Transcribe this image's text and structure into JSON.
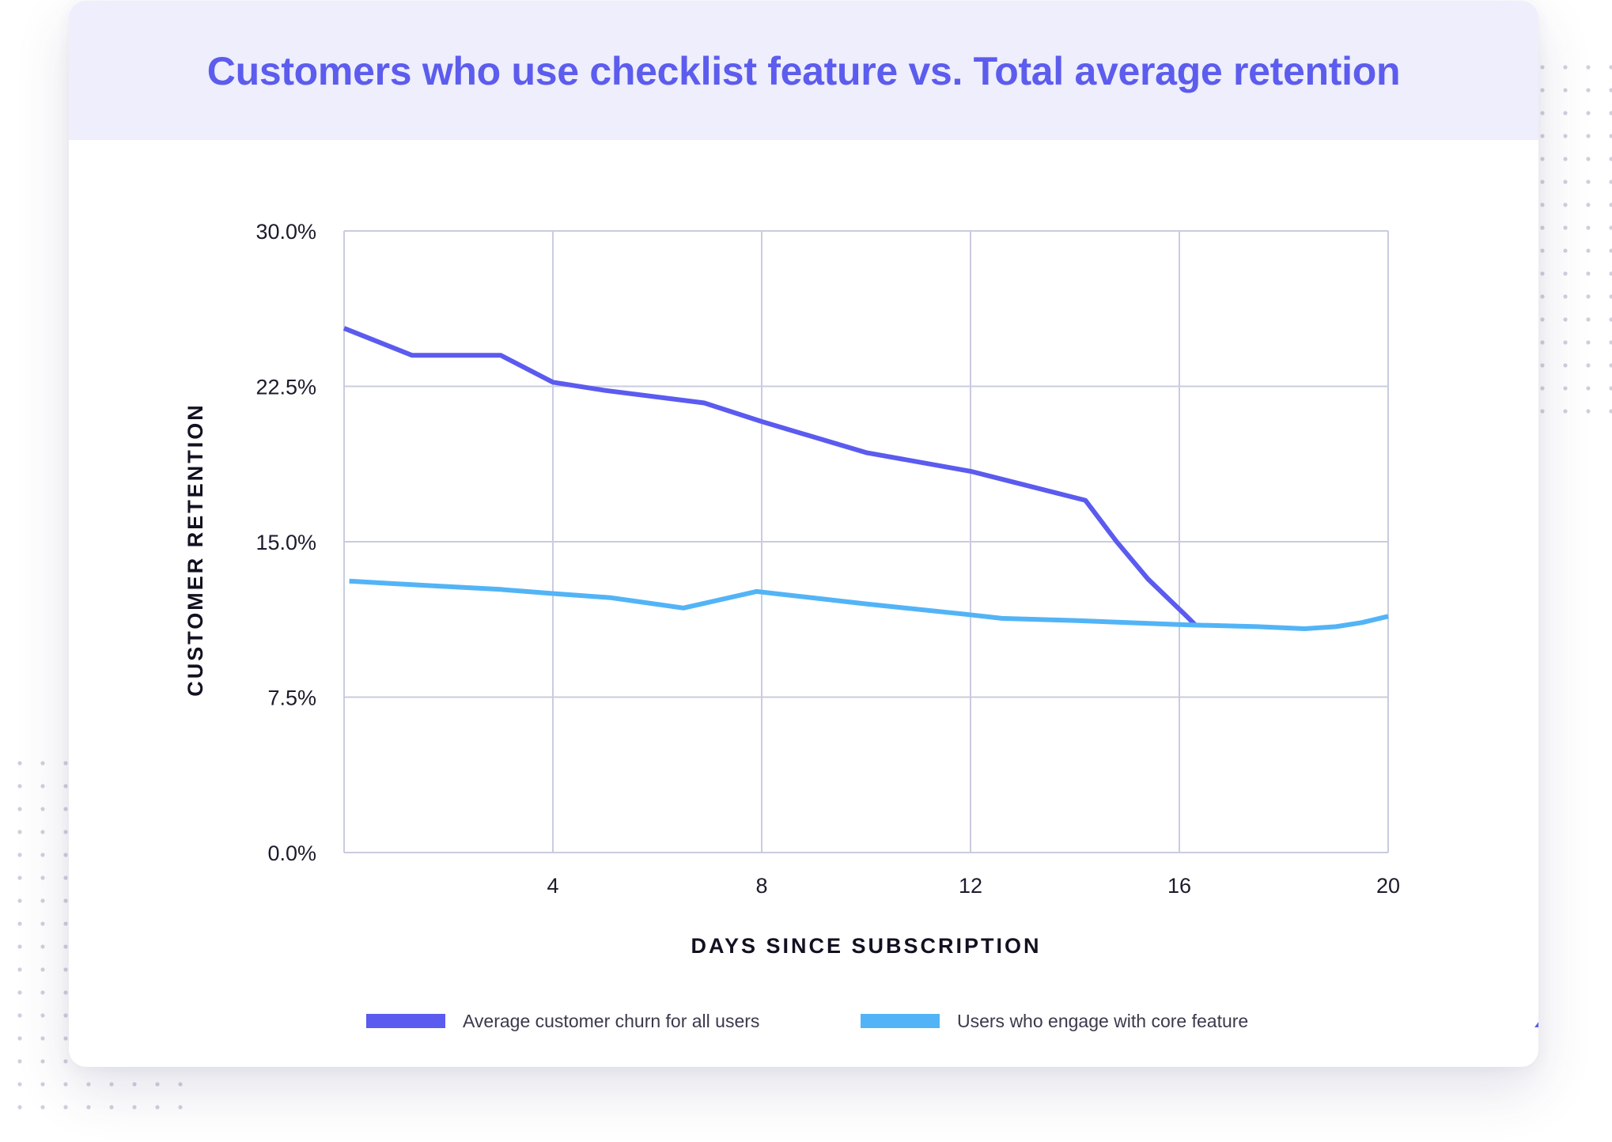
{
  "title": "Customers who use checklist feature vs. Total average retention",
  "colors": {
    "title": "#5c5cee",
    "header_bg": "#eeeefc",
    "grid": "#c9ccdf",
    "churn": "#5b5bef",
    "engage": "#52b4f6",
    "logo": "#5b5bef",
    "dots": "#cfd0dd"
  },
  "legend": {
    "churn_label": "Average customer churn for all users",
    "engage_label": "Users who engage with core feature"
  },
  "logo_icon": "brand-mark-icon",
  "chart_data": {
    "type": "line",
    "title": "Customers who use checklist feature vs. Total average retention",
    "xlabel": "DAYS SINCE SUBSCRIPTION",
    "ylabel": "CUSTOMER RETENTION",
    "xlim": [
      0,
      20
    ],
    "ylim": [
      0,
      30
    ],
    "x_ticks": [
      4,
      8,
      12,
      16,
      20
    ],
    "y_ticks": [
      0,
      7.5,
      15,
      22.5,
      30
    ],
    "y_tick_labels": [
      "0.0%",
      "7.5%",
      "15.0%",
      "22.5%",
      "30.0%"
    ],
    "grid": true,
    "legend_position": "bottom",
    "series": [
      {
        "name": "Average customer churn for all users",
        "color": "#5b5bef",
        "points": [
          [
            0,
            25.3
          ],
          [
            1.3,
            24.0
          ],
          [
            3.0,
            24.0
          ],
          [
            4.0,
            22.7
          ],
          [
            5.0,
            22.3
          ],
          [
            6.9,
            21.7
          ],
          [
            8.0,
            20.8
          ],
          [
            10.0,
            19.3
          ],
          [
            12.0,
            18.4
          ],
          [
            14.2,
            17.0
          ],
          [
            14.8,
            15.0
          ],
          [
            15.4,
            13.2
          ],
          [
            16.1,
            11.5
          ],
          [
            16.3,
            11.0
          ]
        ]
      },
      {
        "name": "Users who engage with core feature",
        "color": "#52b4f6",
        "points": [
          [
            0.1,
            13.1
          ],
          [
            1.5,
            12.9
          ],
          [
            3.0,
            12.7
          ],
          [
            4.0,
            12.5
          ],
          [
            5.1,
            12.3
          ],
          [
            6.5,
            11.8
          ],
          [
            7.9,
            12.6
          ],
          [
            10.0,
            12.0
          ],
          [
            11.9,
            11.5
          ],
          [
            12.6,
            11.3
          ],
          [
            14.0,
            11.2
          ],
          [
            16.0,
            11.0
          ],
          [
            17.5,
            10.9
          ],
          [
            18.4,
            10.8
          ],
          [
            19.0,
            10.9
          ],
          [
            19.5,
            11.1
          ],
          [
            20.0,
            11.4
          ]
        ]
      }
    ]
  }
}
